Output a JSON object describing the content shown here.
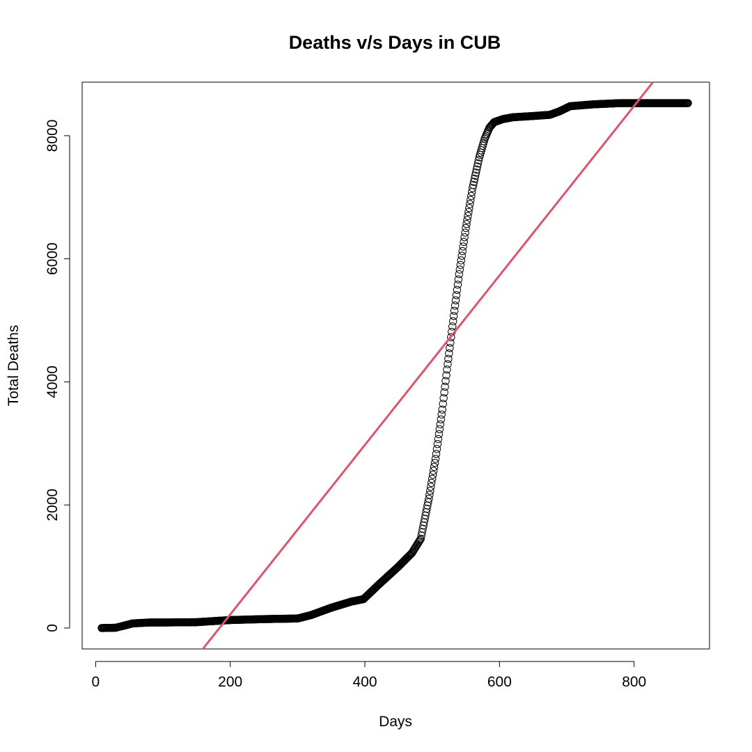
{
  "chart_data": {
    "type": "scatter",
    "title": "Deaths v/s Days in CUB",
    "xlabel": "Days",
    "ylabel": "Total Deaths",
    "xlim": [
      -20,
      912
    ],
    "ylim": [
      -340,
      8870
    ],
    "x_ticks": [
      0,
      200,
      400,
      600,
      800
    ],
    "x_tick_labels": [
      "0",
      "200",
      "400",
      "600",
      "800"
    ],
    "y_ticks": [
      0,
      2000,
      4000,
      6000,
      8000
    ],
    "y_tick_labels": [
      "0",
      "2000",
      "4000",
      "6000",
      "8000"
    ],
    "grid": false,
    "legend": "none",
    "x_range": [
      9,
      880
    ],
    "series": [
      {
        "kind": "points",
        "marker": "open-circle",
        "color": "#000000",
        "x": [
          9,
          30,
          55,
          80,
          100,
          150,
          200,
          250,
          300,
          320,
          350,
          380,
          398,
          420,
          450,
          470,
          483,
          488,
          495,
          505,
          515,
          522,
          530,
          540,
          550,
          560,
          570,
          578,
          585,
          592,
          605,
          620,
          650,
          675,
          690,
          705,
          740,
          780,
          820,
          850,
          880
        ],
        "y": [
          0,
          5,
          75,
          90,
          90,
          95,
          130,
          145,
          155,
          210,
          330,
          430,
          470,
          700,
          1000,
          1220,
          1450,
          1720,
          2100,
          2750,
          3550,
          4200,
          4900,
          5750,
          6500,
          7150,
          7650,
          7950,
          8130,
          8220,
          8270,
          8300,
          8320,
          8340,
          8400,
          8480,
          8510,
          8530,
          8530,
          8530,
          8530
        ]
      },
      {
        "kind": "line",
        "color": "#DF536B",
        "x": [
          160,
          828
        ],
        "y": [
          -330,
          8870
        ]
      }
    ]
  }
}
